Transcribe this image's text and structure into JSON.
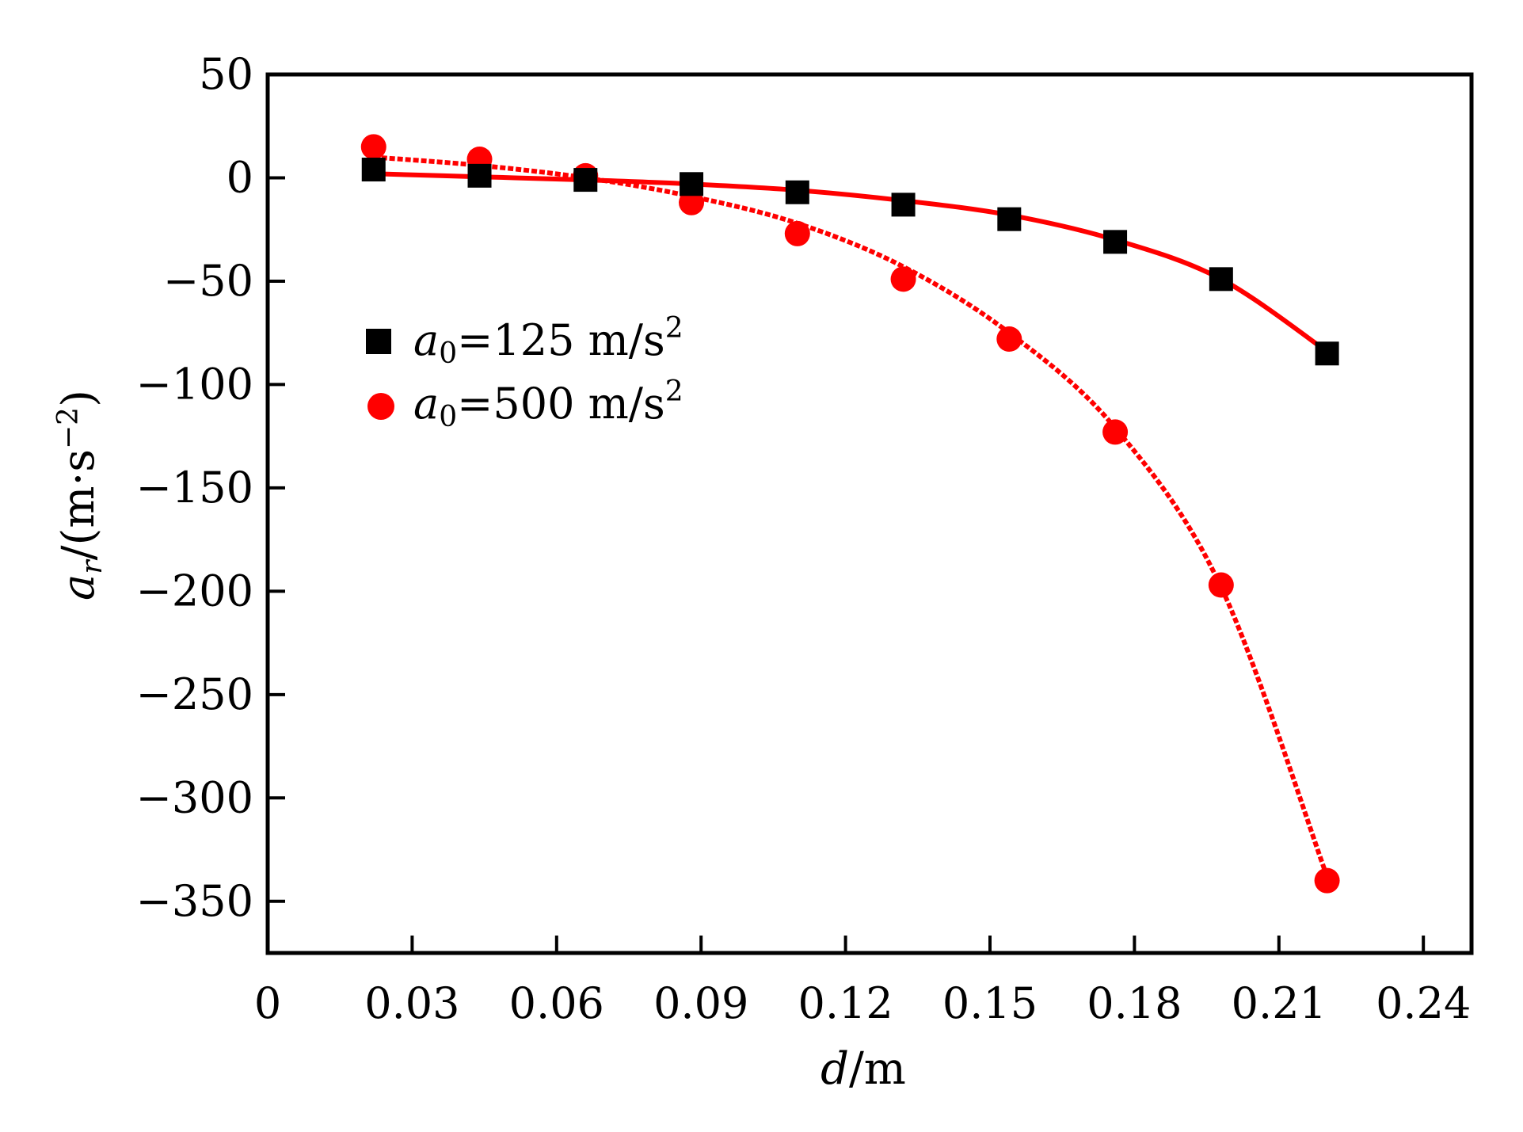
{
  "chart_data": {
    "type": "scatter",
    "xlabel": {
      "var": "d",
      "unit": "/m"
    },
    "ylabel": {
      "var": "a",
      "sub": "r",
      "unit": "/(m·s",
      "sup": "−2",
      "close": ")"
    },
    "xlim": [
      0,
      0.25
    ],
    "ylim": [
      -375,
      50
    ],
    "x_ticks": [
      0,
      0.03,
      0.06,
      0.09,
      0.12,
      0.15,
      0.18,
      0.21,
      0.24
    ],
    "x_tick_labels": [
      "0",
      "0.03",
      "0.06",
      "0.09",
      "0.12",
      "0.15",
      "0.18",
      "0.21",
      "0.24"
    ],
    "y_ticks": [
      50,
      0,
      -50,
      -100,
      -150,
      -200,
      -250,
      -300,
      -350
    ],
    "y_tick_labels": [
      "50",
      "0",
      "−50",
      "−100",
      "−150",
      "−200",
      "−250",
      "−300",
      "−350"
    ],
    "grid": false,
    "legend_position": "upper-left",
    "series": [
      {
        "legend_var": "a",
        "legend_sub": "0",
        "legend_value": "=125 m/s",
        "legend_sup": "2",
        "marker": "square",
        "marker_color": "#000000",
        "line_color": "#ff0000",
        "line_style": "solid",
        "x": [
          0.022,
          0.044,
          0.066,
          0.088,
          0.11,
          0.132,
          0.154,
          0.176,
          0.198,
          0.22
        ],
        "y": [
          4,
          1,
          -1,
          -3,
          -7,
          -13,
          -20,
          -31,
          -49,
          -85
        ],
        "fit_y": [
          2,
          0.5,
          -1,
          -3,
          -6,
          -11,
          -18,
          -30,
          -49,
          -84
        ]
      },
      {
        "legend_var": "a",
        "legend_sub": "0",
        "legend_value": "=500 m/s",
        "legend_sup": "2",
        "marker": "circle",
        "marker_color": "#ff0000",
        "line_color": "#ff0000",
        "line_style": "dashed",
        "x": [
          0.022,
          0.044,
          0.066,
          0.088,
          0.11,
          0.132,
          0.154,
          0.176,
          0.198,
          0.22
        ],
        "y": [
          15,
          9,
          1,
          -12,
          -27,
          -49,
          -78,
          -123,
          -197,
          -340
        ],
        "fit_y": [
          10,
          6,
          0,
          -9,
          -22,
          -43,
          -75,
          -121,
          -198,
          -338
        ]
      }
    ]
  }
}
